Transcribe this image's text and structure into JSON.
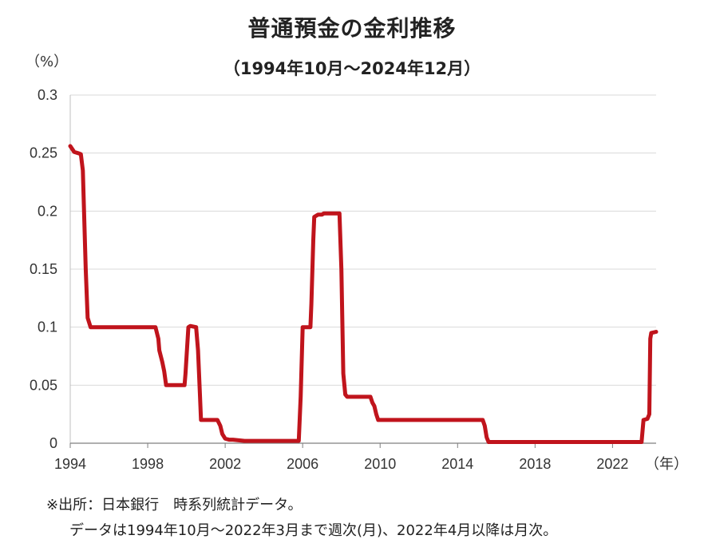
{
  "chart_data": {
    "type": "line",
    "title": "普通預金の金利推移",
    "subtitle": "（1994年10月～2024年12月）",
    "y_unit": "（%）",
    "x_unit": "（年）",
    "ylim": [
      0,
      0.3
    ],
    "xlim": [
      1994,
      2024.25
    ],
    "y_ticks": [
      "0",
      "0.05",
      "0.1",
      "0.15",
      "0.2",
      "0.25",
      "0.3"
    ],
    "x_ticks": [
      "1994",
      "1998",
      "2002",
      "2006",
      "2010",
      "2014",
      "2018",
      "2022"
    ],
    "grid": "horizontal",
    "line_color": "#c0141c",
    "series": [
      {
        "x": [
          1994.0,
          1994.2,
          1994.4,
          1994.55,
          1994.65,
          1994.8,
          1994.9,
          1995.05,
          1998.4,
          1998.55,
          1998.6,
          1998.75,
          1998.85,
          1998.95,
          1999.05,
          1999.9,
          1999.95,
          2000.1,
          2000.2,
          2000.5,
          2000.6,
          2000.7,
          2000.75,
          2001.6,
          2001.75,
          2001.85,
          2002.0,
          2002.2,
          2002.4,
          2003.0,
          2005.8,
          2005.9,
          2006.0,
          2006.4,
          2006.45,
          2006.55,
          2006.6,
          2006.7,
          2006.8,
          2007.0,
          2007.1,
          2007.15,
          2007.9,
          2008.0,
          2008.1,
          2008.2,
          2008.3,
          2008.4,
          2009.5,
          2009.6,
          2009.7,
          2009.8,
          2009.9,
          2015.3,
          2015.4,
          2015.5,
          2015.6,
          2023.5,
          2023.6,
          2023.8,
          2023.9,
          2023.95,
          2024.0,
          2024.25
        ],
        "values": [
          0.256,
          0.251,
          0.25,
          0.249,
          0.235,
          0.15,
          0.108,
          0.1,
          0.1,
          0.09,
          0.08,
          0.07,
          0.062,
          0.05,
          0.05,
          0.05,
          0.06,
          0.1,
          0.101,
          0.1,
          0.08,
          0.04,
          0.02,
          0.02,
          0.015,
          0.008,
          0.004,
          0.003,
          0.003,
          0.002,
          0.002,
          0.04,
          0.1,
          0.1,
          0.12,
          0.175,
          0.195,
          0.196,
          0.197,
          0.197,
          0.198,
          0.198,
          0.198,
          0.15,
          0.06,
          0.042,
          0.04,
          0.04,
          0.04,
          0.035,
          0.032,
          0.025,
          0.02,
          0.02,
          0.015,
          0.005,
          0.001,
          0.001,
          0.02,
          0.021,
          0.025,
          0.09,
          0.095,
          0.096
        ]
      }
    ]
  },
  "source_note": {
    "line1": "※出所：日本銀行　時系列統計データ。",
    "line2": "データは1994年10月～2022年3月まで週次(月)、2022年4月以降は月次。"
  }
}
